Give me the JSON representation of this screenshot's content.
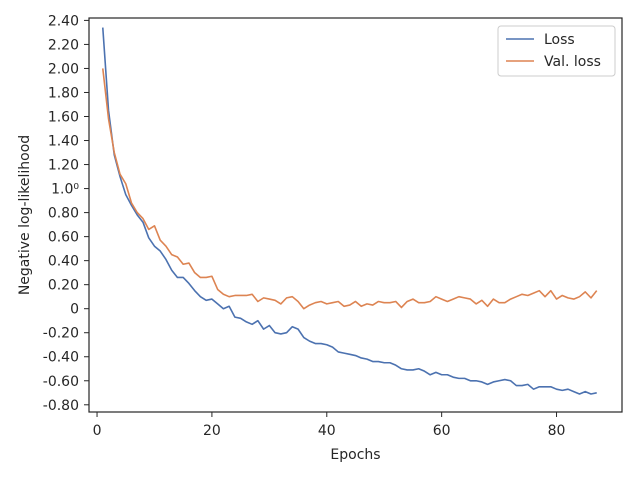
{
  "chart_data": {
    "type": "line",
    "title": "",
    "xlabel": "Epochs",
    "ylabel": "Negative log-likelihood",
    "xlim": [
      -1.4,
      91.4
    ],
    "ylim": [
      -0.86,
      2.42
    ],
    "xticks": [
      0,
      20,
      40,
      60,
      80
    ],
    "xtick_labels": [
      "0",
      "20",
      "40",
      "60",
      "80"
    ],
    "yticks": [
      -0.8,
      -0.6,
      -0.4,
      -0.2,
      0,
      0.2,
      0.4,
      0.6,
      0.8,
      1.0,
      1.2,
      1.4,
      1.6,
      1.8,
      2.0,
      2.2,
      2.4
    ],
    "ytick_labels": [
      "-0.80",
      "-0.60",
      "-0.40",
      "-0.20",
      "0",
      "0.20",
      "0.40",
      "0.60",
      "0.80",
      "1.0⁰",
      "1.20",
      "1.40",
      "1.60",
      "1.80",
      "2.00",
      "2.20",
      "2.40"
    ],
    "grid": false,
    "legend_position": "top-right",
    "x": [
      1,
      2,
      3,
      4,
      5,
      6,
      7,
      8,
      9,
      10,
      11,
      12,
      13,
      14,
      15,
      16,
      17,
      18,
      19,
      20,
      21,
      22,
      23,
      24,
      25,
      26,
      27,
      28,
      29,
      30,
      31,
      32,
      33,
      34,
      35,
      36,
      37,
      38,
      39,
      40,
      41,
      42,
      43,
      44,
      45,
      46,
      47,
      48,
      49,
      50,
      51,
      52,
      53,
      54,
      55,
      56,
      57,
      58,
      59,
      60,
      61,
      62,
      63,
      64,
      65,
      66,
      67,
      68,
      69,
      70,
      71,
      72,
      73,
      74,
      75,
      76,
      77,
      78,
      79,
      80,
      81,
      82,
      83,
      84,
      85,
      86,
      87
    ],
    "series": [
      {
        "name": "Loss",
        "color": "#4c72b0",
        "values": [
          2.34,
          1.65,
          1.28,
          1.1,
          0.95,
          0.86,
          0.78,
          0.72,
          0.59,
          0.52,
          0.48,
          0.41,
          0.32,
          0.26,
          0.26,
          0.21,
          0.15,
          0.1,
          0.07,
          0.08,
          0.04,
          0.0,
          0.02,
          -0.07,
          -0.08,
          -0.11,
          -0.13,
          -0.1,
          -0.17,
          -0.14,
          -0.2,
          -0.21,
          -0.2,
          -0.15,
          -0.17,
          -0.24,
          -0.27,
          -0.29,
          -0.29,
          -0.3,
          -0.32,
          -0.36,
          -0.37,
          -0.38,
          -0.39,
          -0.41,
          -0.42,
          -0.44,
          -0.44,
          -0.45,
          -0.45,
          -0.47,
          -0.5,
          -0.51,
          -0.51,
          -0.5,
          -0.52,
          -0.55,
          -0.53,
          -0.55,
          -0.55,
          -0.57,
          -0.58,
          -0.58,
          -0.6,
          -0.6,
          -0.61,
          -0.63,
          -0.61,
          -0.6,
          -0.59,
          -0.6,
          -0.64,
          -0.64,
          -0.63,
          -0.67,
          -0.65,
          -0.65,
          -0.65,
          -0.67,
          -0.68,
          -0.67,
          -0.69,
          -0.71,
          -0.69,
          -0.71,
          -0.7
        ]
      },
      {
        "name": "Val. loss",
        "color": "#dd8452",
        "values": [
          2.0,
          1.58,
          1.3,
          1.12,
          1.04,
          0.88,
          0.8,
          0.75,
          0.66,
          0.69,
          0.57,
          0.52,
          0.45,
          0.43,
          0.37,
          0.38,
          0.3,
          0.26,
          0.26,
          0.27,
          0.16,
          0.12,
          0.1,
          0.11,
          0.11,
          0.11,
          0.12,
          0.06,
          0.09,
          0.08,
          0.07,
          0.04,
          0.09,
          0.1,
          0.06,
          0.0,
          0.03,
          0.05,
          0.06,
          0.04,
          0.05,
          0.06,
          0.02,
          0.03,
          0.06,
          0.02,
          0.04,
          0.03,
          0.06,
          0.05,
          0.05,
          0.06,
          0.01,
          0.06,
          0.08,
          0.05,
          0.05,
          0.06,
          0.1,
          0.08,
          0.06,
          0.08,
          0.1,
          0.09,
          0.08,
          0.04,
          0.07,
          0.02,
          0.08,
          0.05,
          0.05,
          0.08,
          0.1,
          0.12,
          0.11,
          0.13,
          0.15,
          0.1,
          0.15,
          0.08,
          0.11,
          0.09,
          0.08,
          0.1,
          0.14,
          0.09,
          0.15
        ]
      }
    ]
  }
}
